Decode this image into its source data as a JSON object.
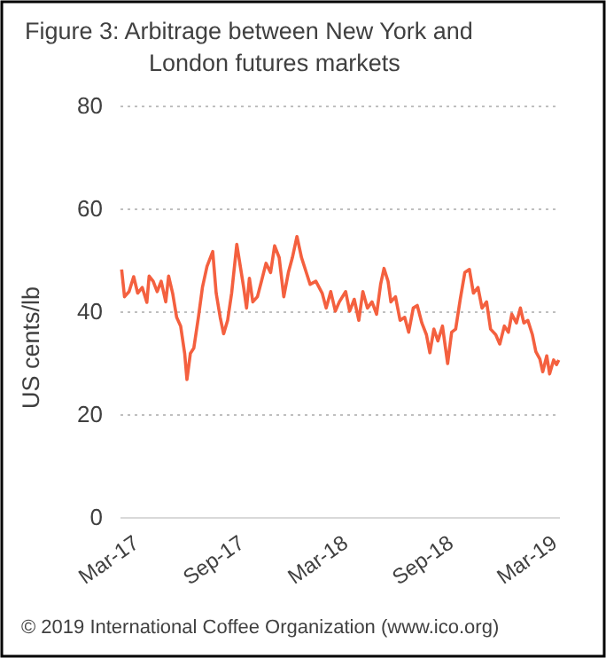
{
  "chart_data": {
    "type": "line",
    "title": "Figure 3: Arbitrage between New York and London futures markets",
    "ylabel": "US cents/lb",
    "annotations": [
      "© 2019 International Coffee Organization (www.ico.org)"
    ],
    "xlim": [
      "2017-02-01",
      "2019-03-10"
    ],
    "xticks": [
      {
        "value": "2017-03-01",
        "label": "Mar-17"
      },
      {
        "value": "2017-09-01",
        "label": "Sep-17"
      },
      {
        "value": "2018-03-01",
        "label": "Mar-18"
      },
      {
        "value": "2018-09-01",
        "label": "Sep-18"
      },
      {
        "value": "2019-03-01",
        "label": "Mar-19"
      }
    ],
    "ylim": [
      0,
      80
    ],
    "yticks": [
      0,
      20,
      40,
      60,
      80
    ],
    "grid": "y",
    "series": [
      {
        "color": "#f4603f",
        "x": [
          "2017-02-03",
          "2017-02-08",
          "2017-02-16",
          "2017-02-24",
          "2017-03-03",
          "2017-03-11",
          "2017-03-19",
          "2017-03-23",
          "2017-03-30",
          "2017-04-06",
          "2017-04-13",
          "2017-04-21",
          "2017-04-26",
          "2017-05-03",
          "2017-05-10",
          "2017-05-17",
          "2017-05-24",
          "2017-05-28",
          "2017-06-03",
          "2017-06-09",
          "2017-06-17",
          "2017-06-24",
          "2017-07-02",
          "2017-07-12",
          "2017-07-18",
          "2017-07-25",
          "2017-07-31",
          "2017-08-07",
          "2017-08-14",
          "2017-08-23",
          "2017-08-30",
          "2017-09-04",
          "2017-09-09",
          "2017-09-14",
          "2017-09-20",
          "2017-09-28",
          "2017-10-05",
          "2017-10-13",
          "2017-10-21",
          "2017-10-28",
          "2017-11-05",
          "2017-11-13",
          "2017-11-21",
          "2017-11-28",
          "2017-12-06",
          "2017-12-14",
          "2017-12-29",
          "2018-01-08",
          "2018-01-19",
          "2018-01-26",
          "2018-02-03",
          "2018-02-11",
          "2018-02-18",
          "2018-03-01",
          "2018-03-08",
          "2018-03-16",
          "2018-03-24",
          "2018-03-31",
          "2018-04-08",
          "2018-04-16",
          "2018-04-24",
          "2018-05-01",
          "2018-05-07",
          "2018-05-14",
          "2018-05-19",
          "2018-05-27",
          "2018-06-04",
          "2018-06-12",
          "2018-06-19",
          "2018-06-27",
          "2018-07-04",
          "2018-07-12",
          "2018-07-20",
          "2018-07-26",
          "2018-08-02",
          "2018-08-09",
          "2018-08-17",
          "2018-08-26",
          "2018-09-02",
          "2018-09-09",
          "2018-09-17",
          "2018-09-25",
          "2018-10-03",
          "2018-10-10",
          "2018-10-18",
          "2018-10-25",
          "2018-11-02",
          "2018-11-09",
          "2018-11-18",
          "2018-11-25",
          "2018-12-03",
          "2018-12-10",
          "2018-12-16",
          "2018-12-24",
          "2018-12-31",
          "2019-01-06",
          "2019-01-13",
          "2019-01-21",
          "2019-01-27",
          "2019-02-03",
          "2019-02-08",
          "2019-02-15",
          "2019-02-20",
          "2019-02-27",
          "2019-03-04",
          "2019-03-08"
        ],
        "values": [
          48.3,
          43,
          44,
          46.9,
          43.7,
          44.8,
          41.9,
          47,
          46,
          44,
          46,
          42,
          47,
          43.7,
          39,
          37.3,
          32,
          26.9,
          32,
          33,
          39,
          44.8,
          48.9,
          51.8,
          43.7,
          39,
          35.8,
          38.4,
          43.7,
          53.2,
          48.3,
          44.8,
          40.8,
          46.6,
          42,
          43,
          46,
          49.5,
          47.7,
          52.9,
          50.6,
          43,
          47.7,
          50.6,
          54.7,
          50.6,
          45.4,
          46,
          43.7,
          40.8,
          44,
          40.2,
          42,
          44,
          40.2,
          42.5,
          38.4,
          44,
          40.8,
          42,
          39.6,
          45.4,
          48.5,
          46,
          42,
          43,
          38.4,
          39,
          36.1,
          40.8,
          41.3,
          37.9,
          35.6,
          32.1,
          36.7,
          34.4,
          37.3,
          30,
          36.1,
          36.7,
          42.5,
          47.7,
          48.3,
          43.7,
          44.8,
          40.8,
          42,
          36.7,
          35.6,
          33.8,
          37.3,
          36.1,
          39.6,
          37.9,
          40.8,
          37.9,
          38.4,
          35.6,
          32.3,
          30.9,
          28.4,
          31.5,
          28,
          30.7,
          29.8,
          30.7
        ]
      }
    ]
  }
}
